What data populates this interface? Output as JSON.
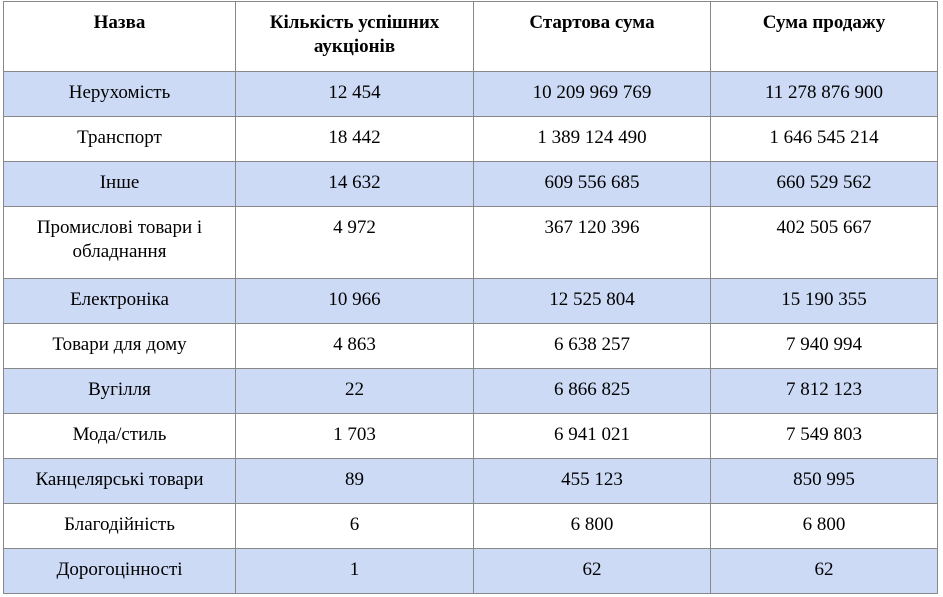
{
  "table": {
    "headers": [
      "Назва",
      "Кількість успішних аукціонів",
      "Стартова сума",
      "Сума продажу"
    ],
    "rows": [
      {
        "name": "Нерухомість",
        "count": "12 454",
        "start": "10 209 969 769",
        "sale": "11 278 876 900",
        "shaded": true
      },
      {
        "name": "Транспорт",
        "count": "18 442",
        "start": "1 389 124 490",
        "sale": "1 646 545 214",
        "shaded": false
      },
      {
        "name": "Інше",
        "count": "14 632",
        "start": "609 556 685",
        "sale": "660 529 562",
        "shaded": true
      },
      {
        "name": "Промислові товари і обладнання",
        "count": "4 972",
        "start": "367 120 396",
        "sale": "402 505 667",
        "shaded": false
      },
      {
        "name": "Електроніка",
        "count": "10 966",
        "start": "12 525 804",
        "sale": "15 190 355",
        "shaded": true
      },
      {
        "name": "Товари для дому",
        "count": "4 863",
        "start": "6 638 257",
        "sale": "7 940 994",
        "shaded": false
      },
      {
        "name": "Вугілля",
        "count": "22",
        "start": "6 866 825",
        "sale": "7 812 123",
        "shaded": true
      },
      {
        "name": "Мода/стиль",
        "count": "1 703",
        "start": "6 941 021",
        "sale": "7 549 803",
        "shaded": false
      },
      {
        "name": "Канцелярські товари",
        "count": "89",
        "start": "455 123",
        "sale": "850 995",
        "shaded": true
      },
      {
        "name": "Благодійність",
        "count": "6",
        "start": "6 800",
        "sale": "6 800",
        "shaded": false
      },
      {
        "name": "Дорогоцінності",
        "count": "1",
        "start": "62",
        "sale": "62",
        "shaded": true
      }
    ]
  },
  "colors": {
    "shaded_row": "#ccdaf5",
    "border": "#888888"
  }
}
